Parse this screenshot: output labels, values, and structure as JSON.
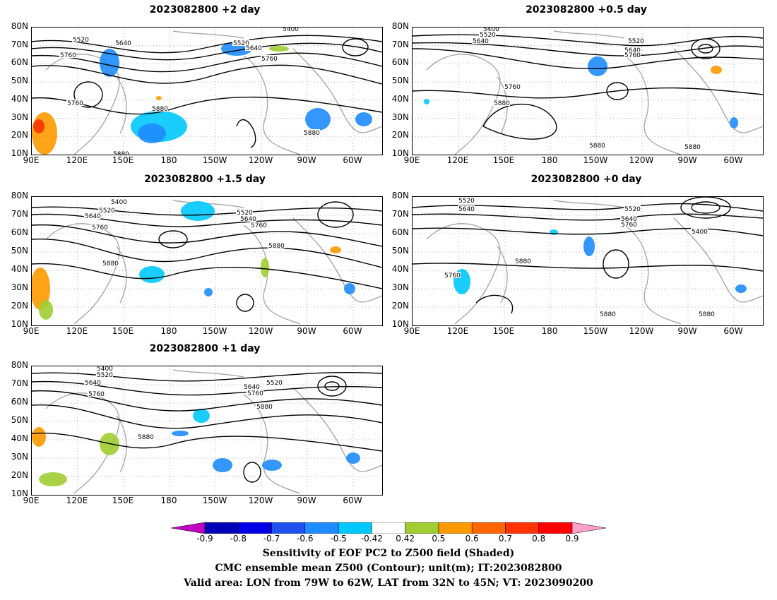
{
  "panels": [
    {
      "title": "2023082800 +2 day",
      "labels": [
        "5400",
        "5520",
        "5640",
        "5760",
        "5520",
        "5640",
        "5760",
        "5760",
        "5880",
        "5880",
        "5880"
      ]
    },
    {
      "title": "2023082800 +0.5 day",
      "labels": [
        "5400",
        "5520",
        "5640",
        "5520",
        "5640",
        "5760",
        "5760",
        "5880",
        "5880",
        "5880"
      ]
    },
    {
      "title": "2023082800 +1.5 day",
      "labels": [
        "5400",
        "5520",
        "5640",
        "5760",
        "5520",
        "5640",
        "5760",
        "5880",
        "5880"
      ]
    },
    {
      "title": "2023082800 +0 day",
      "labels": [
        "5520",
        "5640",
        "5520",
        "5640",
        "5760",
        "5400",
        "5880",
        "5760",
        "5880",
        "5880"
      ]
    },
    {
      "title": "2023082800 +1 day",
      "labels": [
        "5400",
        "5520",
        "5640",
        "5760",
        "5640",
        "5760",
        "5520",
        "5880",
        "5880"
      ]
    }
  ],
  "lat_labels": [
    "80N",
    "70N",
    "60N",
    "50N",
    "40N",
    "30N",
    "20N",
    "10N"
  ],
  "lon_labels": [
    "90E",
    "120E",
    "150E",
    "180",
    "150W",
    "120W",
    "90W",
    "60W"
  ],
  "colorbar": {
    "ticks": [
      "-0.9",
      "-0.8",
      "-0.7",
      "-0.6",
      "-0.5",
      "-0.42",
      "0.42",
      "0.5",
      "0.6",
      "0.7",
      "0.8",
      "0.9"
    ],
    "colors": [
      "#c000c0",
      "#0000b4",
      "#0000e6",
      "#2050f0",
      "#1e8cff",
      "#00c8ff",
      "#ffffff",
      "#a0cd32",
      "#ff9900",
      "#ff6600",
      "#ff3300",
      "#ff0000",
      "#ffa0c8"
    ]
  },
  "caption": {
    "line1": "Sensitivity of EOF PC2 to Z500 field (Shaded)",
    "line2": "CMC ensemble mean Z500 (Contour); unit(m); IT:2023082800",
    "line3": "Valid area: LON from 79W to 62W, LAT from 32N to 45N; VT: 2023090200"
  }
}
